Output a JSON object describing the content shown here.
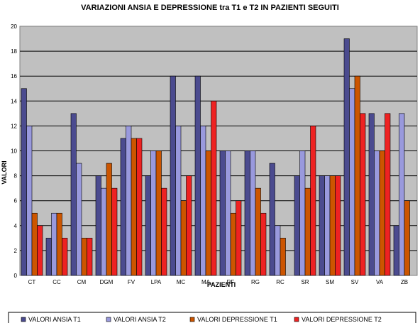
{
  "chart_data": {
    "type": "bar",
    "title": "VARIAZIONI ANSIA E DEPRESSIONE tra T1 e T2 IN PAZIENTI SEGUITI",
    "xlabel": "PAZIENTI",
    "ylabel": "VALORI",
    "ylim": [
      0,
      20
    ],
    "yticks": [
      0,
      2,
      4,
      6,
      8,
      10,
      12,
      14,
      16,
      18,
      20
    ],
    "grid": true,
    "legend_position": "bottom",
    "categories": [
      "CT",
      "CC",
      "CM",
      "DGM",
      "FV",
      "LPA",
      "MC",
      "MA",
      "RF",
      "RG",
      "RC",
      "SR",
      "SM",
      "SV",
      "VA",
      "ZB"
    ],
    "series": [
      {
        "name": "VALORI ANSIA T1",
        "color": "#4b4b8f",
        "values": [
          15,
          3,
          13,
          8,
          11,
          8,
          16,
          16,
          10,
          10,
          9,
          8,
          8,
          19,
          13,
          4
        ]
      },
      {
        "name": "VALORI ANSIA T2",
        "color": "#9999dd",
        "values": [
          12,
          5,
          9,
          7,
          12,
          10,
          12,
          12,
          10,
          10,
          4,
          10,
          8,
          15,
          10,
          13
        ]
      },
      {
        "name": "VALORI DEPRESSIONE T1",
        "color": "#cc5500",
        "values": [
          5,
          5,
          3,
          9,
          11,
          10,
          6,
          10,
          5,
          7,
          3,
          7,
          8,
          16,
          10,
          6
        ]
      },
      {
        "name": "VALORI DEPRESSIONE T2",
        "color": "#ee2222",
        "values": [
          4,
          3,
          3,
          7,
          11,
          7,
          8,
          14,
          6,
          5,
          null,
          12,
          8,
          13,
          13,
          null
        ]
      }
    ]
  }
}
